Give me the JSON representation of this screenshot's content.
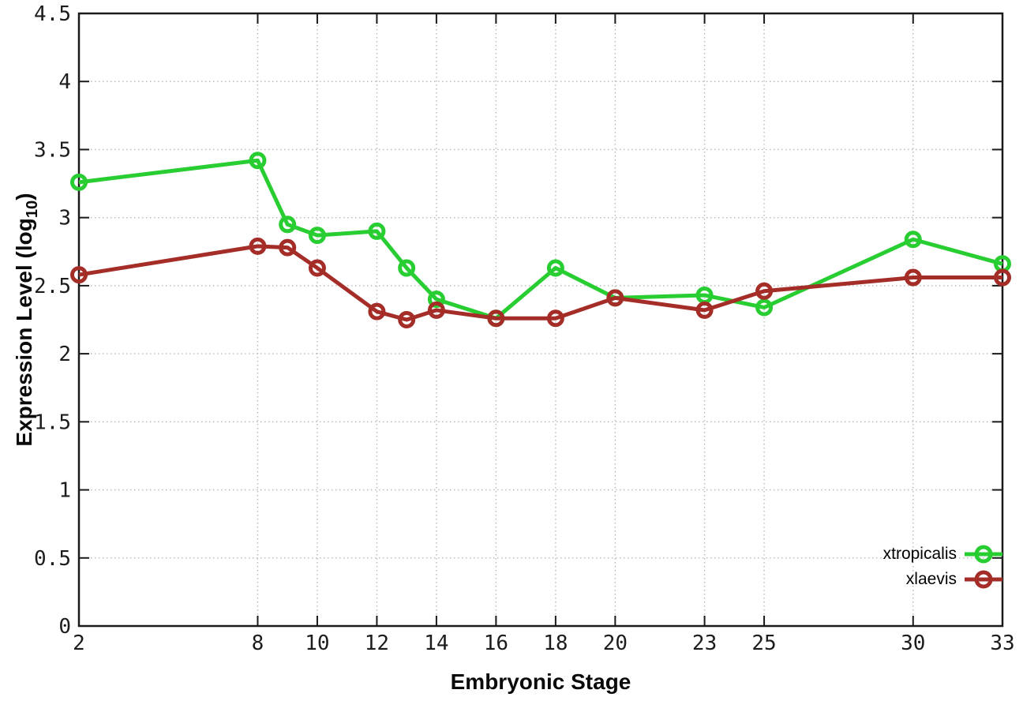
{
  "figure": {
    "background": "#ffffff",
    "border_color": "#1a1a1a",
    "grid_color": "#b8b8b8",
    "tick_label_color": "#1c1c1c"
  },
  "chart_data": {
    "type": "line",
    "title": "",
    "xlabel": "Embryonic Stage",
    "ylabel": "Expression Level (log10)",
    "ylabel_parts": {
      "prefix": "Expression Level (log",
      "sub": "10",
      "suffix": ")"
    },
    "x": [
      2,
      8,
      9,
      10,
      12,
      13,
      14,
      16,
      18,
      20,
      23,
      25,
      30,
      33
    ],
    "series": [
      {
        "name": "xtropicalis",
        "color": "#28cd32",
        "marker": "open-circle",
        "values": [
          3.26,
          3.42,
          2.95,
          2.87,
          2.9,
          2.63,
          2.4,
          2.26,
          2.63,
          2.41,
          2.43,
          2.34,
          2.84,
          2.66
        ]
      },
      {
        "name": "xlaevis",
        "color": "#a52d28",
        "marker": "open-circle",
        "values": [
          2.58,
          2.79,
          2.78,
          2.63,
          2.31,
          2.25,
          2.32,
          2.26,
          2.26,
          2.41,
          2.32,
          2.46,
          2.56,
          2.56
        ]
      }
    ],
    "xlim": [
      2,
      33
    ],
    "ylim": [
      0,
      4.5
    ],
    "xticks": [
      2,
      8,
      10,
      12,
      14,
      16,
      18,
      20,
      23,
      25,
      30,
      33
    ],
    "yticks": [
      "0",
      "0.5",
      "1",
      "1.5",
      "2",
      "2.5",
      "3",
      "3.5",
      "4",
      "4.5"
    ],
    "grid": true,
    "grid_style": "dotted",
    "legend_position": "inside-right-lower",
    "legend_entries": [
      "xtropicalis",
      "xlaevis"
    ]
  }
}
